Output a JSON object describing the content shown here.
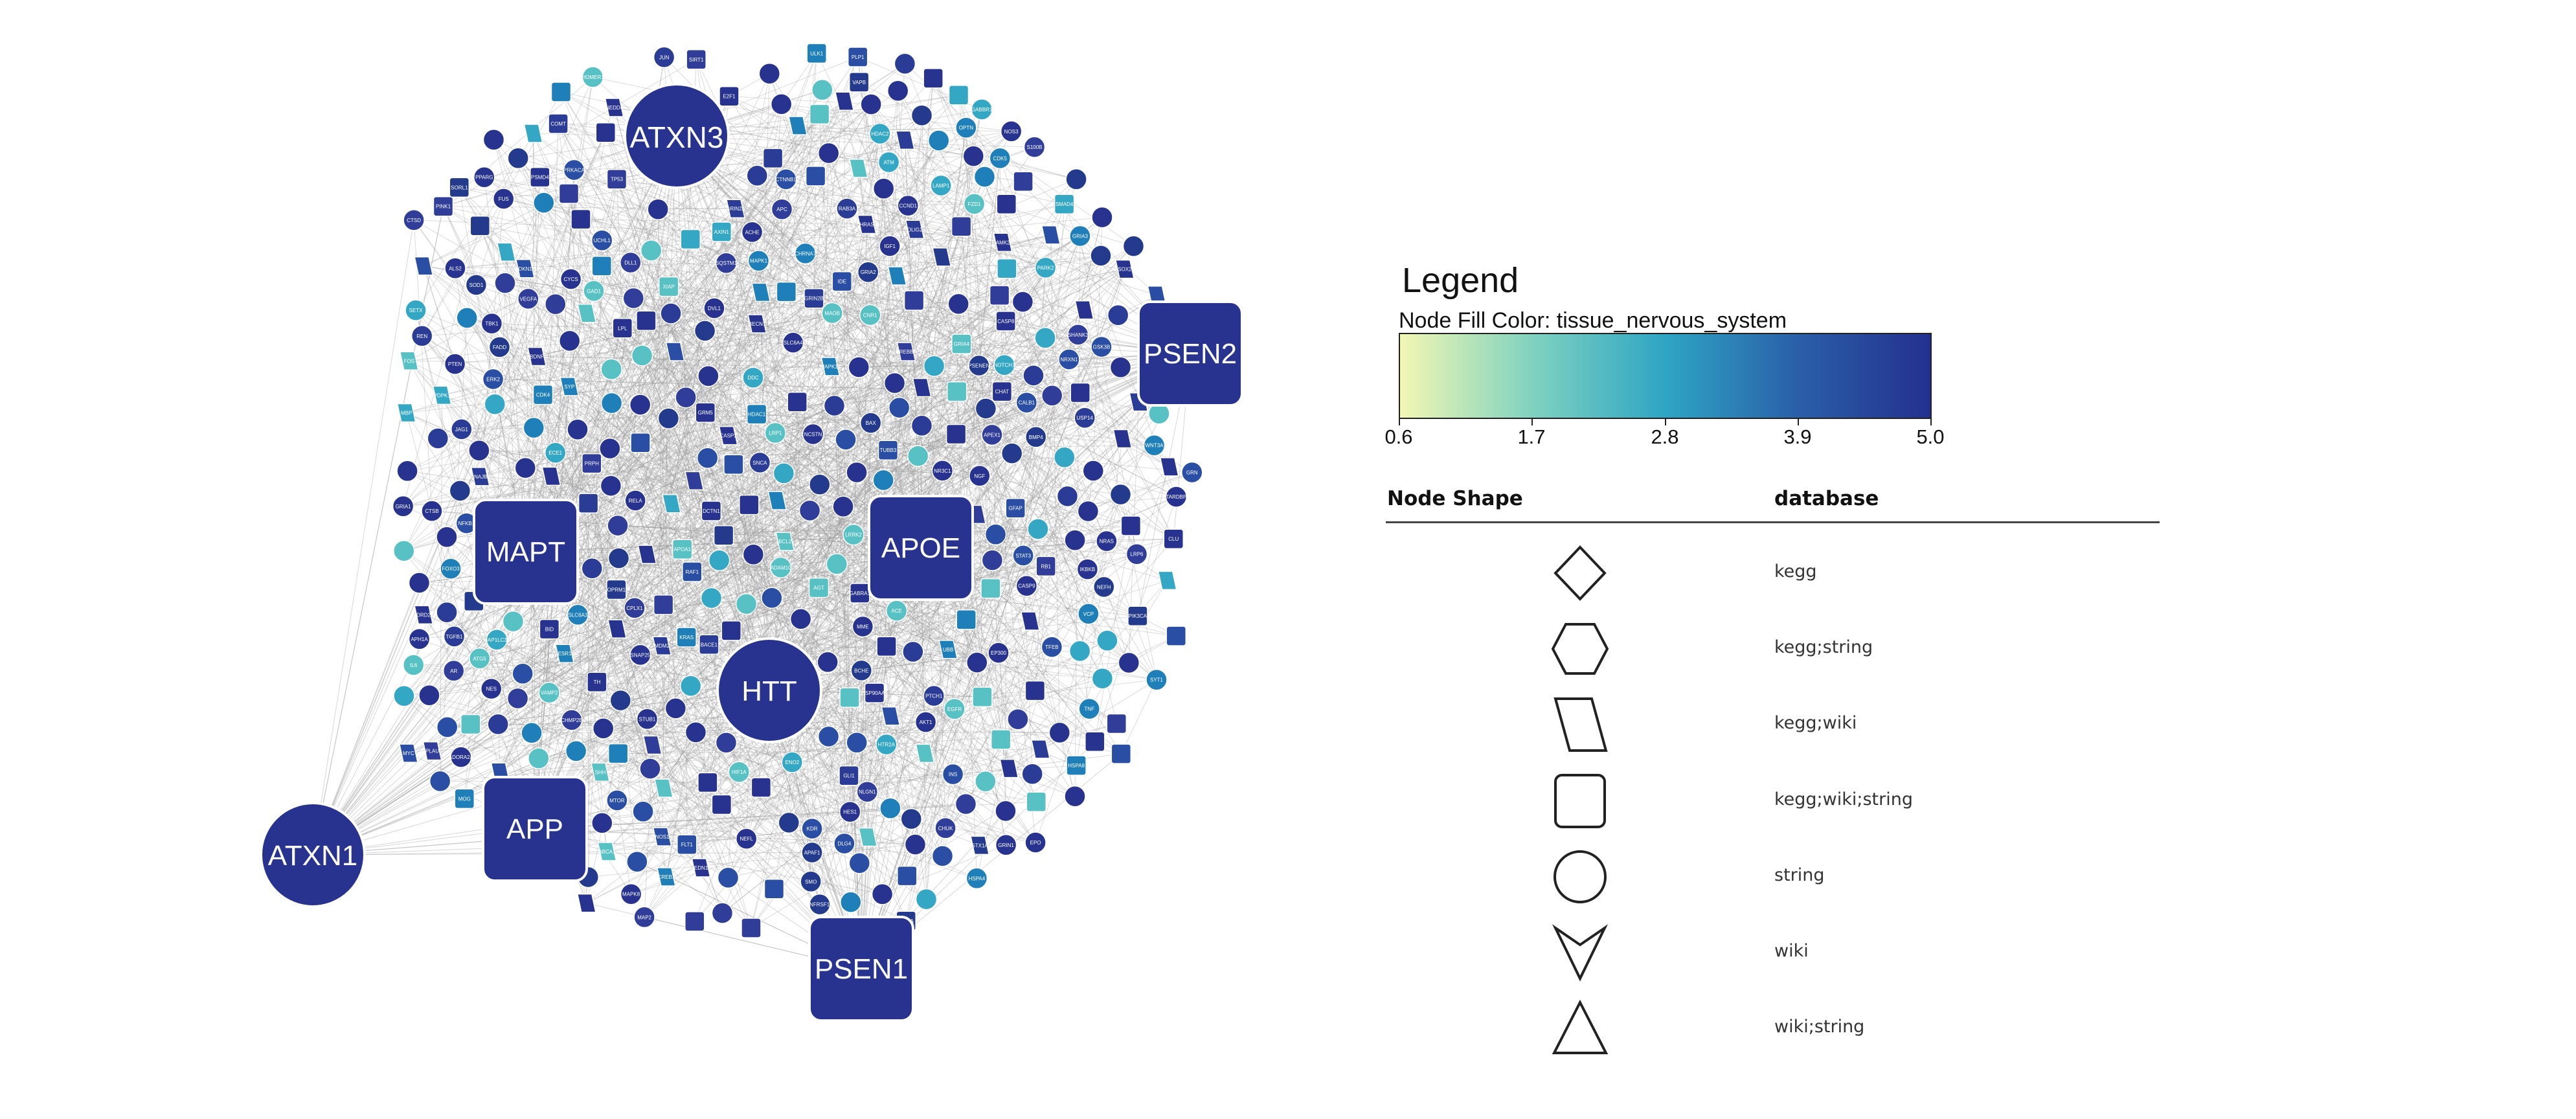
{
  "network": {
    "edge_color": "#9a9a9a",
    "node_color": "#27338f",
    "hubs": [
      {
        "label": "ATXN3",
        "shape": "circle"
      },
      {
        "label": "PSEN2",
        "shape": "square"
      },
      {
        "label": "MAPT",
        "shape": "square"
      },
      {
        "label": "APOE",
        "shape": "square"
      },
      {
        "label": "HTT",
        "shape": "circle"
      },
      {
        "label": "APP",
        "shape": "square"
      },
      {
        "label": "ATXN1",
        "shape": "circle"
      },
      {
        "label": "PSEN1",
        "shape": "square"
      }
    ],
    "small_labels": [
      "GRIA4",
      "GRIN1",
      "GRIA3",
      "CALB1",
      "SNCA",
      "BDNF",
      "PARK2",
      "GSK3B",
      "CDK5",
      "APEX1",
      "CASP3",
      "TP53",
      "MAPK1",
      "AKT1",
      "BCL2",
      "IL6",
      "TNF",
      "HSPA4",
      "SOD1",
      "CREB1",
      "FOS",
      "JUN",
      "EGFR",
      "NGF",
      "GRM5",
      "DLG4",
      "SIRT1",
      "PPARG",
      "CHAT",
      "GAD1",
      "NOS1",
      "STAT3",
      "EP300",
      "CREBBP",
      "HDAC1",
      "HDAC2",
      "PRKACA",
      "CAMK2A",
      "PTEN",
      "MTOR",
      "ATM",
      "UBB",
      "UCHL1",
      "LRRK2",
      "PINK1",
      "VCP",
      "TARDBP",
      "FUS",
      "GRN",
      "SQSTM1",
      "OPTN",
      "TBK1",
      "CHMP2B",
      "SETX",
      "ALS2",
      "VAPB",
      "DCTN1",
      "NEFL",
      "NEFH",
      "PRPH",
      "GFAP",
      "S100B",
      "ENO2",
      "MBP",
      "PLP1",
      "MOG",
      "OLIG2",
      "SOX2",
      "NES",
      "TUBB3",
      "MAP2",
      "SYP",
      "SNAP25",
      "STX1A",
      "VAMP2",
      "SYT1",
      "RAB3A",
      "CPLX1",
      "NRXN1",
      "NLGN1",
      "SHANK3",
      "HOMER1",
      "GRIA1",
      "GRIA2",
      "GRIN2A",
      "GRIN2B",
      "GABRA1",
      "GABBR1",
      "DRD2",
      "HTR2A",
      "CHRNA7",
      "ADORA2A",
      "CNR1",
      "OPRM1",
      "SLC6A3",
      "SLC6A4",
      "TH",
      "DDC",
      "COMT",
      "MAOA",
      "MAOB",
      "ACHE",
      "BCHE",
      "ESR1",
      "AR",
      "NR3C1",
      "INS",
      "IGF1",
      "APOA1",
      "LPL",
      "CLU",
      "ABCA1",
      "LRP1",
      "SORL1",
      "BACE1",
      "ADAM10",
      "NCSTN",
      "PSENEN",
      "APH1A",
      "MME",
      "IDE",
      "ECE1",
      "PLAU",
      "CTSB",
      "CTSD",
      "LAMP1",
      "ATG5",
      "BECN1",
      "MAP1LC3B",
      "ULK1",
      "TFEB",
      "HSPA8",
      "DNAJB1",
      "HSP90AA1",
      "STUB1",
      "USP14",
      "PSMD4",
      "NEDD4",
      "XIAP",
      "BAX",
      "BID",
      "CYCS",
      "APAF1",
      "CASP9",
      "CASP8",
      "FADD",
      "TNFRSF1A",
      "NFKB1",
      "RELA",
      "IKBKB",
      "CHUK",
      "MAPK8",
      "MAPK14",
      "ERK2",
      "RAF1",
      "KRAS",
      "HRAS",
      "NRAS",
      "PIK3CA",
      "PDPK1",
      "FOXO3",
      "CDKN1A",
      "MDM2",
      "RB1",
      "E2F1",
      "CCND1",
      "CDK4",
      "MYC",
      "NOTCH1",
      "HES1",
      "JAG1",
      "DLL1",
      "WNT3A",
      "CTNNB1",
      "APC",
      "AXIN1",
      "DVL1",
      "FZD1",
      "LRP6",
      "SHH",
      "PTCH1",
      "SMO",
      "GLI1",
      "BMP4",
      "SMAD4",
      "TGFB1",
      "VEGFA",
      "KDR",
      "FLT1",
      "HIF1A",
      "EPO",
      "NOS3",
      "EDN1",
      "ACE",
      "AGT",
      "REN"
    ],
    "bg_colors": [
      "#27338f",
      "#27338f",
      "#2b3c96",
      "#243a8c",
      "#2a4ea3",
      "#1f7fb8",
      "#34a7c4",
      "#58c1c4",
      "#27338f",
      "#303d99"
    ]
  },
  "legend": {
    "title": "Legend",
    "fill_title": "Node Fill Color:  tissue_nervous_system",
    "gradient_colors": [
      "#f3f7b4",
      "#7fd2bf",
      "#2ea5c4",
      "#2a5fa8",
      "#24308f"
    ],
    "ticks": [
      "0.6",
      "1.7",
      "2.8",
      "3.9",
      "5.0"
    ],
    "shape_header": "Node Shape",
    "database_header": "database",
    "shapes": [
      {
        "icon": "diamond-icon",
        "label": "kegg"
      },
      {
        "icon": "hexagon-icon",
        "label": "kegg;string"
      },
      {
        "icon": "parallelogram-icon",
        "label": "kegg;wiki"
      },
      {
        "icon": "rounded-square-icon",
        "label": "kegg;wiki;string"
      },
      {
        "icon": "circle-icon",
        "label": "string"
      },
      {
        "icon": "v-arrow-icon",
        "label": "wiki"
      },
      {
        "icon": "triangle-icon",
        "label": "wiki;string"
      }
    ]
  }
}
